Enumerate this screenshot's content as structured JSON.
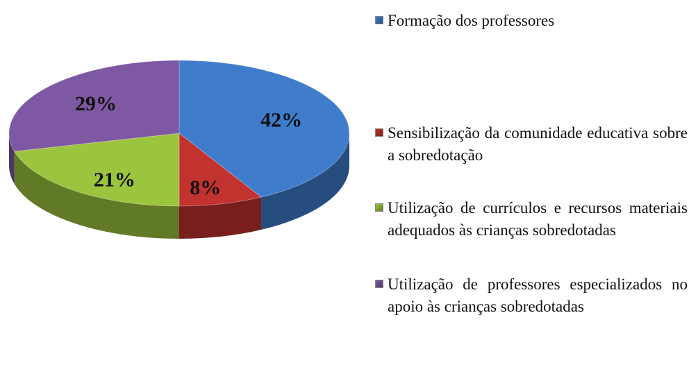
{
  "chart_data": {
    "type": "pie3d",
    "categories": [
      "Formação dos professores",
      "Sensibilização da comunidade educativa sobre a sobredotação",
      "Utilização de currículos e recursos materiais adequados às crianças sobredotadas",
      "Utilização de professores especializados no apoio às crianças sobredotadas"
    ],
    "values": [
      42,
      8,
      21,
      29
    ],
    "value_labels": [
      "42%",
      "8%",
      "21%",
      "29%"
    ],
    "colors": [
      "#3f7ccc",
      "#c2322f",
      "#9cc43e",
      "#7e58a3"
    ],
    "legend": "right"
  }
}
